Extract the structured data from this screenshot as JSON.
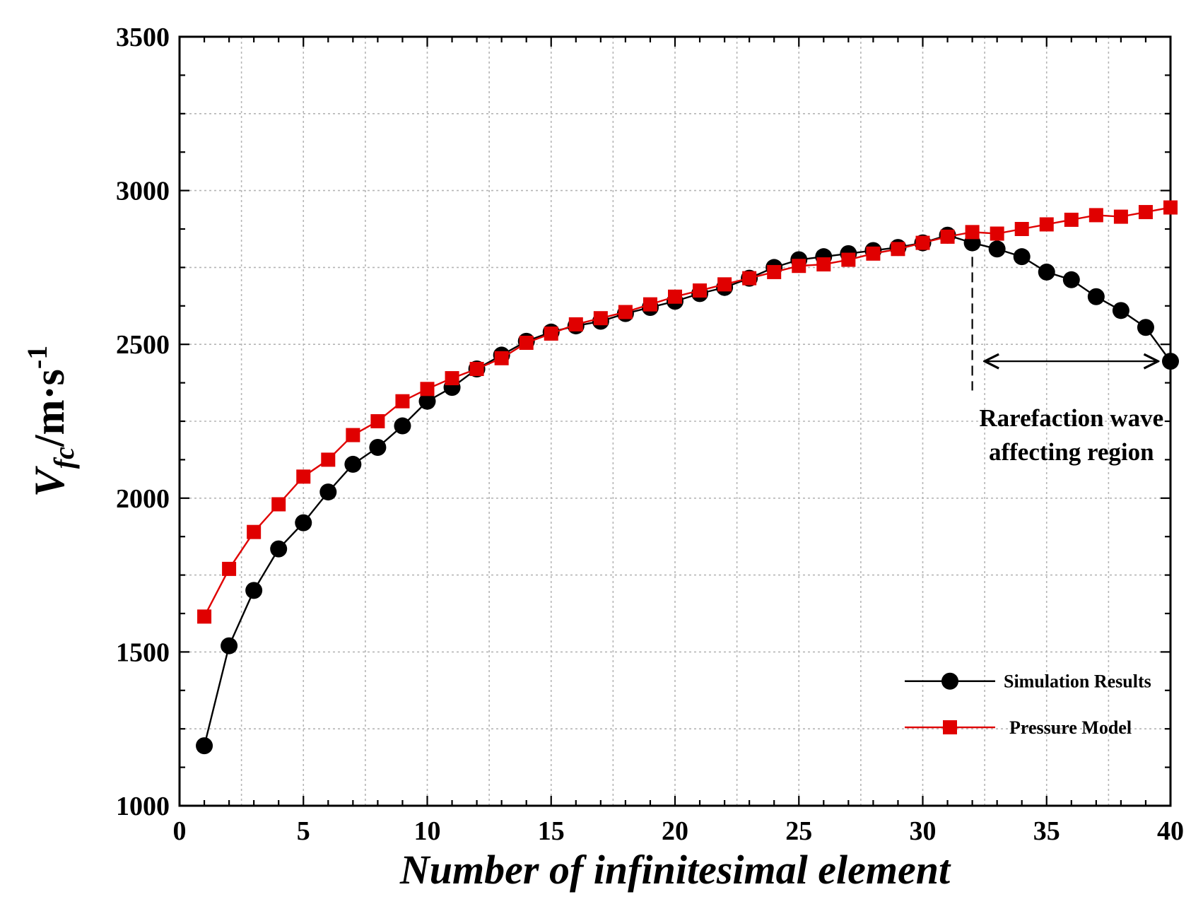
{
  "chart_data": {
    "type": "line",
    "xlabel": "Number of infinitesimal element",
    "ylabel": {
      "main": "V",
      "subscript": "fc",
      "unit": "/m·s",
      "exponent": "-1"
    },
    "xlim": [
      0,
      40
    ],
    "ylim": [
      1000,
      3500
    ],
    "x_ticks": [
      "0",
      "5",
      "10",
      "15",
      "20",
      "25",
      "30",
      "35",
      "40"
    ],
    "y_ticks": [
      "1000",
      "1500",
      "2000",
      "2500",
      "3000",
      "3500"
    ],
    "grid": true,
    "legend_position": "bottom-right",
    "x": [
      1,
      2,
      3,
      4,
      5,
      6,
      7,
      8,
      9,
      10,
      11,
      12,
      13,
      14,
      15,
      16,
      17,
      18,
      19,
      20,
      21,
      22,
      23,
      24,
      25,
      26,
      27,
      28,
      29,
      30,
      31,
      32,
      33,
      34,
      35,
      36,
      37,
      38,
      39,
      40
    ],
    "series": [
      {
        "name": "Simulation Results",
        "color": "#000000",
        "marker": "circle",
        "values": [
          1195,
          1520,
          1700,
          1835,
          1920,
          2020,
          2110,
          2165,
          2235,
          2315,
          2360,
          2420,
          2465,
          2510,
          2540,
          2560,
          2575,
          2600,
          2620,
          2640,
          2665,
          2685,
          2715,
          2750,
          2775,
          2785,
          2795,
          2805,
          2815,
          2830,
          2855,
          2830,
          2810,
          2785,
          2735,
          2710,
          2655,
          2610,
          2555,
          2445
        ]
      },
      {
        "name": "Pressure Model",
        "color": "#e00000",
        "marker": "square",
        "values": [
          1615,
          1770,
          1890,
          1980,
          2070,
          2125,
          2205,
          2250,
          2315,
          2355,
          2390,
          2420,
          2455,
          2505,
          2535,
          2565,
          2585,
          2605,
          2630,
          2655,
          2675,
          2695,
          2715,
          2735,
          2755,
          2760,
          2775,
          2795,
          2810,
          2830,
          2850,
          2865,
          2860,
          2875,
          2890,
          2905,
          2920,
          2915,
          2930,
          2945
        ]
      }
    ],
    "annotation": {
      "line1": "Rarefaction wave",
      "line2": "affecting region",
      "marker_x": 32,
      "arrow_from_x": 32.5,
      "arrow_to_x": 39.5,
      "arrow_y": 2445
    }
  }
}
